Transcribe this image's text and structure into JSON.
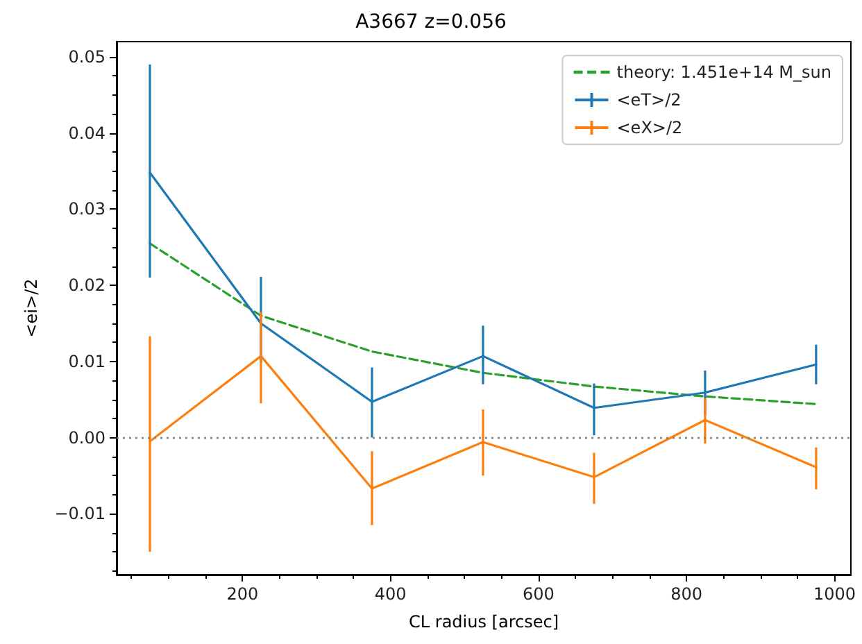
{
  "chart_data": {
    "type": "line",
    "title": "A3667 z=0.056",
    "xlabel": "CL radius [arcsec]",
    "ylabel": "<ei>/2",
    "x": [
      75,
      225,
      375,
      525,
      675,
      825,
      975
    ],
    "series": [
      {
        "name": "theory: 1.451e+14 M_sun",
        "color": "#2ca02c",
        "line_style": "dashed",
        "values": [
          0.0255,
          0.016,
          0.0113,
          0.0085,
          0.0067,
          0.0054,
          0.0044
        ]
      },
      {
        "name": "<eT>/2",
        "color": "#1f77b4",
        "line_style": "solid",
        "values": [
          0.0348,
          0.015,
          0.0047,
          0.0107,
          0.0039,
          0.0059,
          0.0096
        ],
        "errors": [
          [
            0.021,
            0.049
          ],
          [
            0.0098,
            0.0211
          ],
          [
            0.0,
            0.0092
          ],
          [
            0.007,
            0.0147
          ],
          [
            0.0003,
            0.0071
          ],
          [
            0.003,
            0.0088
          ],
          [
            0.007,
            0.0122
          ]
        ]
      },
      {
        "name": "<eX>/2",
        "color": "#ff7f0e",
        "line_style": "solid",
        "values": [
          -0.0005,
          0.0107,
          -0.0067,
          -0.0006,
          -0.0052,
          0.0023,
          -0.0039
        ],
        "errors": [
          [
            -0.015,
            0.0133
          ],
          [
            0.0045,
            0.0165
          ],
          [
            -0.0115,
            -0.0018
          ],
          [
            -0.005,
            0.0037
          ],
          [
            -0.0087,
            -0.002
          ],
          [
            -0.0008,
            0.0052
          ],
          [
            -0.0068,
            -0.0013
          ]
        ]
      }
    ],
    "xlim": [
      30,
      1022
    ],
    "xticks": [
      200,
      400,
      600,
      800,
      1000
    ],
    "ylim": [
      -0.018,
      0.052
    ],
    "yticks": [
      {
        "value": -0.01,
        "label": "−0.01"
      },
      {
        "value": 0,
        "label": "0.00"
      },
      {
        "value": 0.01,
        "label": "0.01"
      },
      {
        "value": 0.02,
        "label": "0.02"
      },
      {
        "value": 0.03,
        "label": "0.03"
      },
      {
        "value": 0.04,
        "label": "0.04"
      },
      {
        "value": 0.05,
        "label": "0.05"
      }
    ],
    "ref_lines": [
      {
        "axis": "y",
        "value": 0,
        "color": "#808080",
        "line_style": "dotted"
      }
    ],
    "legend": "top right",
    "grid": false,
    "marker": "none"
  }
}
